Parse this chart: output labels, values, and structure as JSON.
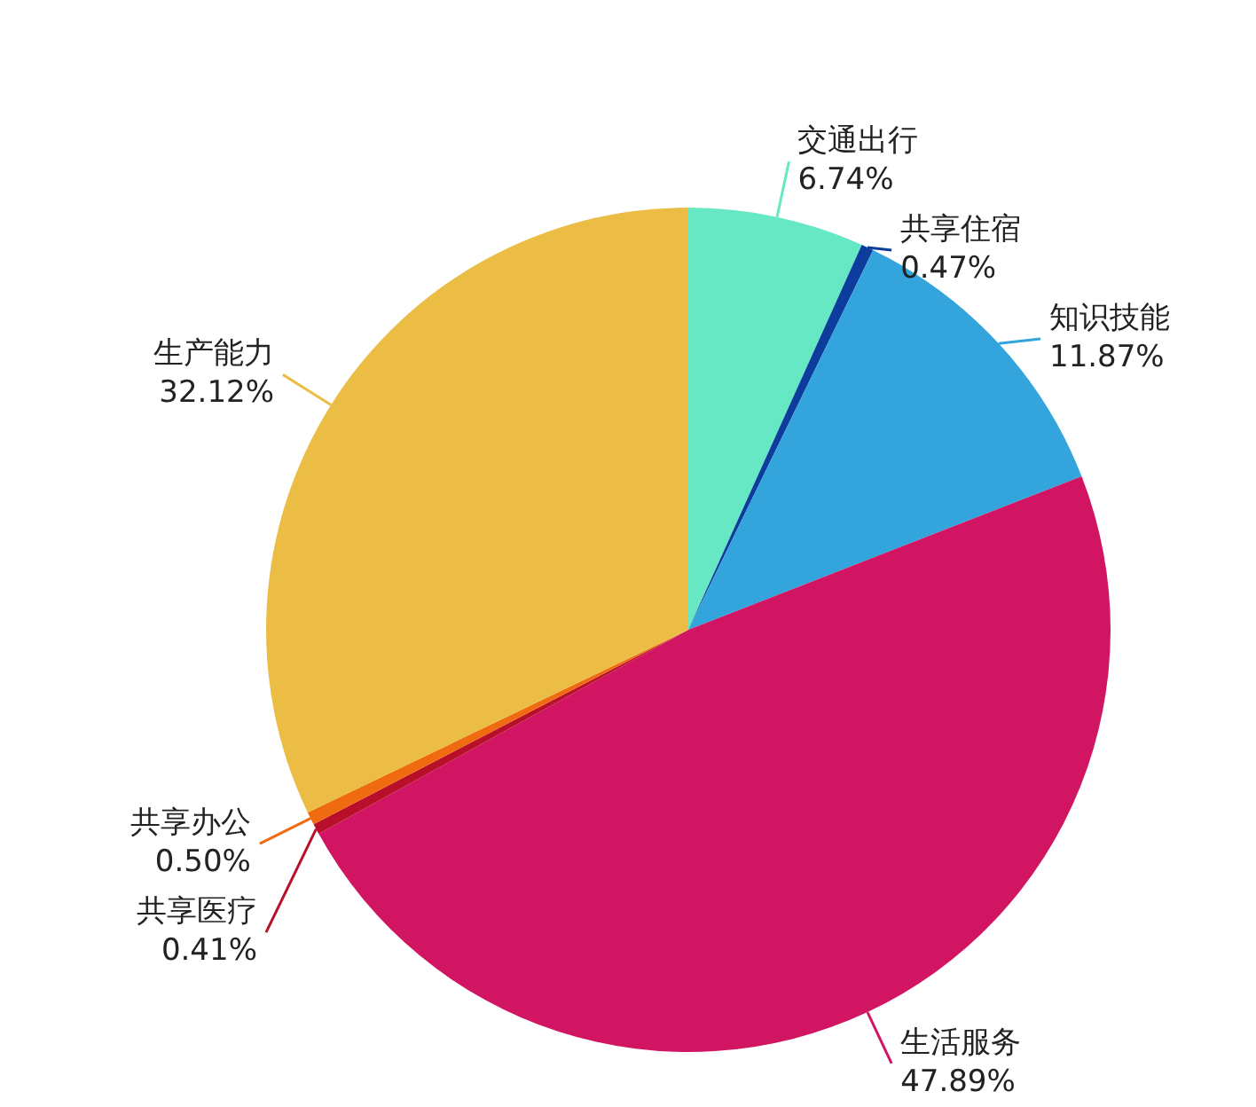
{
  "chart_data": {
    "type": "pie",
    "categories": [
      "交通出行",
      "共享住宿",
      "知识技能",
      "生活服务",
      "共享医疗",
      "共享办公",
      "生产能力"
    ],
    "values": [
      6.74,
      0.47,
      11.87,
      47.89,
      0.41,
      0.5,
      32.12
    ],
    "value_labels": [
      "6.74%",
      "0.47%",
      "11.87%",
      "47.89%",
      "0.41%",
      "0.50%",
      "32.12%"
    ],
    "colors": [
      "#66e8c4",
      "#0d3d9c",
      "#33a4dc",
      "#d11563",
      "#b8102a",
      "#f06a10",
      "#ebbd45"
    ],
    "legend": false
  }
}
